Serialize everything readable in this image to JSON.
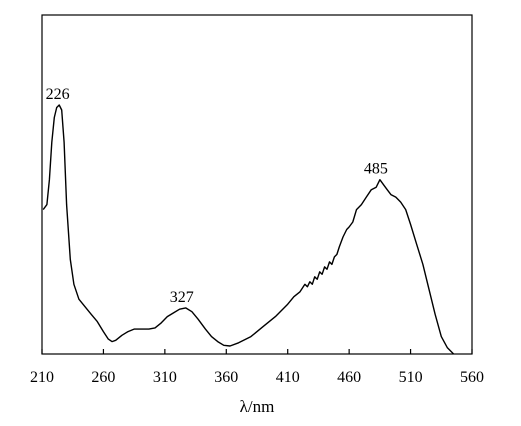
{
  "chart_data": {
    "type": "line",
    "title": "",
    "xlabel": "λ/nm",
    "ylabel": "",
    "xlim": [
      210,
      560
    ],
    "ylim": [
      0,
      1
    ],
    "grid": false,
    "x_ticks": [
      "210",
      "260",
      "310",
      "360",
      "410",
      "460",
      "510",
      "560"
    ],
    "x_tick_values": [
      210,
      260,
      310,
      360,
      410,
      460,
      510,
      560
    ],
    "y_ticks_shown": false,
    "series": [
      {
        "color": "#000000",
        "points": [
          [
            211,
            0.58
          ],
          [
            214,
            0.6
          ],
          [
            216,
            0.7
          ],
          [
            218,
            0.85
          ],
          [
            220,
            0.95
          ],
          [
            222,
            0.99
          ],
          [
            224,
            1.0
          ],
          [
            226,
            0.98
          ],
          [
            228,
            0.85
          ],
          [
            230,
            0.6
          ],
          [
            233,
            0.38
          ],
          [
            236,
            0.28
          ],
          [
            240,
            0.22
          ],
          [
            245,
            0.19
          ],
          [
            250,
            0.16
          ],
          [
            255,
            0.13
          ],
          [
            260,
            0.09
          ],
          [
            264,
            0.06
          ],
          [
            267,
            0.05
          ],
          [
            270,
            0.055
          ],
          [
            275,
            0.075
          ],
          [
            280,
            0.09
          ],
          [
            285,
            0.1
          ],
          [
            290,
            0.1
          ],
          [
            297,
            0.1
          ],
          [
            302,
            0.105
          ],
          [
            307,
            0.125
          ],
          [
            312,
            0.15
          ],
          [
            317,
            0.165
          ],
          [
            322,
            0.18
          ],
          [
            327,
            0.185
          ],
          [
            332,
            0.17
          ],
          [
            337,
            0.14
          ],
          [
            343,
            0.1
          ],
          [
            348,
            0.07
          ],
          [
            353,
            0.05
          ],
          [
            358,
            0.035
          ],
          [
            363,
            0.032
          ],
          [
            370,
            0.045
          ],
          [
            380,
            0.07
          ],
          [
            390,
            0.11
          ],
          [
            400,
            0.15
          ],
          [
            410,
            0.2
          ],
          [
            415,
            0.23
          ],
          [
            420,
            0.25
          ],
          [
            424,
            0.28
          ],
          [
            426,
            0.27
          ],
          [
            428,
            0.29
          ],
          [
            430,
            0.28
          ],
          [
            432,
            0.31
          ],
          [
            434,
            0.3
          ],
          [
            436,
            0.33
          ],
          [
            438,
            0.32
          ],
          [
            440,
            0.35
          ],
          [
            442,
            0.34
          ],
          [
            444,
            0.37
          ],
          [
            446,
            0.36
          ],
          [
            448,
            0.39
          ],
          [
            450,
            0.4
          ],
          [
            452,
            0.43
          ],
          [
            455,
            0.47
          ],
          [
            458,
            0.5
          ],
          [
            460,
            0.51
          ],
          [
            463,
            0.53
          ],
          [
            466,
            0.58
          ],
          [
            470,
            0.6
          ],
          [
            474,
            0.63
          ],
          [
            478,
            0.66
          ],
          [
            482,
            0.67
          ],
          [
            485,
            0.7
          ],
          [
            488,
            0.68
          ],
          [
            491,
            0.66
          ],
          [
            494,
            0.64
          ],
          [
            498,
            0.63
          ],
          [
            502,
            0.61
          ],
          [
            506,
            0.58
          ],
          [
            510,
            0.52
          ],
          [
            515,
            0.44
          ],
          [
            520,
            0.36
          ],
          [
            525,
            0.26
          ],
          [
            530,
            0.16
          ],
          [
            535,
            0.07
          ],
          [
            540,
            0.025
          ],
          [
            545,
            0.0
          ]
        ]
      }
    ],
    "annotations": [
      {
        "text": "226",
        "x": 226,
        "y": 1.0
      },
      {
        "text": "327",
        "x": 327,
        "y": 0.185
      },
      {
        "text": "485",
        "x": 485,
        "y": 0.7
      }
    ]
  }
}
